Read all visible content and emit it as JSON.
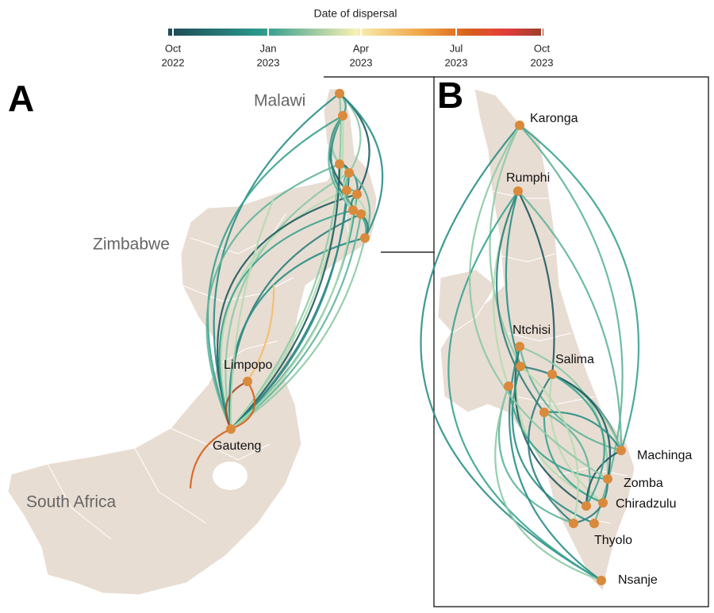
{
  "legend": {
    "title": "Date of dispersal",
    "ticks": [
      {
        "month": "Oct",
        "year": "2022"
      },
      {
        "month": "Jan",
        "year": "2023"
      },
      {
        "month": "Apr",
        "year": "2023"
      },
      {
        "month": "Jul",
        "year": "2023"
      },
      {
        "month": "Oct",
        "year": "2023"
      }
    ]
  },
  "panels": [
    {
      "label": "A",
      "places": [
        "Malawi",
        "Zimbabwe",
        "South Africa",
        "Limpopo",
        "Gauteng"
      ]
    },
    {
      "label": "B",
      "places": [
        "Karonga",
        "Rumphi",
        "Ntchisi",
        "Salima",
        "Machinga",
        "Zomba",
        "Chiradzulu",
        "Thyolo",
        "Nsanje"
      ]
    }
  ]
}
